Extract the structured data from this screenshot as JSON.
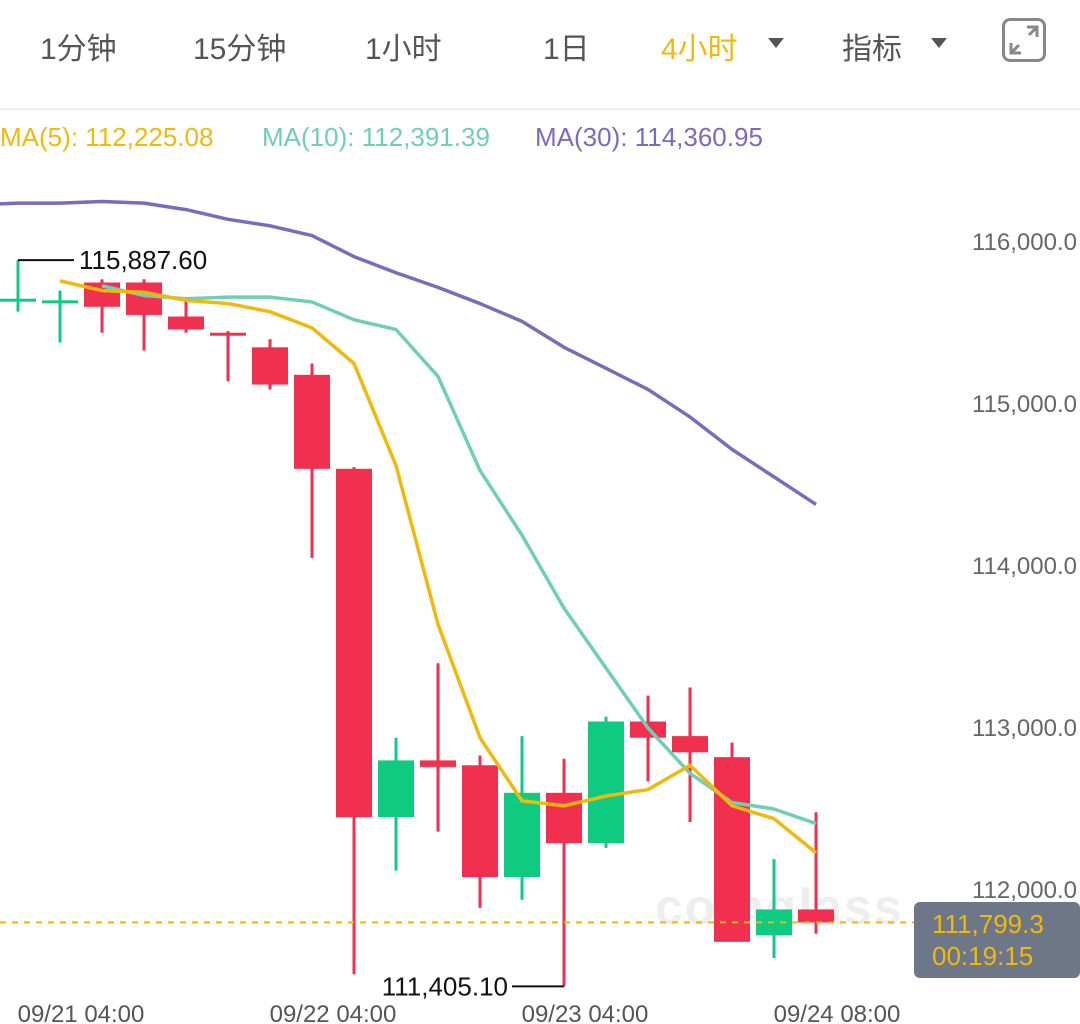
{
  "toolbar": {
    "tabs": [
      {
        "label": "1分钟",
        "active": false
      },
      {
        "label": "15分钟",
        "active": false
      },
      {
        "label": "1小时",
        "active": false
      },
      {
        "label": "1日",
        "active": false
      },
      {
        "label": "4小时",
        "active": true
      }
    ],
    "indicators_label": "指标",
    "expand_icon": "expand-icon"
  },
  "ma": {
    "ma5": {
      "label": "MA(5):",
      "value": "112,225.08",
      "color": "#f0b90b"
    },
    "ma10": {
      "label": "MA(10):",
      "value": "112,391.39",
      "color": "#6fcfb6"
    },
    "ma30": {
      "label": "MA(30):",
      "value": "114,360.95",
      "color": "#7b6bbf"
    }
  },
  "current_price": {
    "price": "111,799.3",
    "countdown": "00:19:15"
  },
  "watermark": "coinglass",
  "chart_data": {
    "type": "candlestick",
    "colors": {
      "up": "#0ecb81",
      "down": "#f0304e",
      "ma5": "#f0b90b",
      "ma10": "#6fcfb6",
      "ma30": "#7b6bbf"
    },
    "y_ticks": [
      "116,000.0",
      "115,000.0",
      "114,000.0",
      "113,000.0",
      "112,000.0"
    ],
    "y_tick_values": [
      116000,
      115000,
      114000,
      113000,
      112000
    ],
    "ylim": [
      111300,
      117100
    ],
    "x_labels": [
      {
        "label": "09/21 04:00",
        "index": 1.5
      },
      {
        "label": "09/22 04:00",
        "index": 7.5
      },
      {
        "label": "09/23 04:00",
        "index": 13.5
      },
      {
        "label": "09/24 08:00",
        "index": 19.5
      }
    ],
    "candles": [
      {
        "o": 115640,
        "h": 115888,
        "l": 115570,
        "c": 115650
      },
      {
        "o": 115640,
        "h": 115700,
        "l": 115380,
        "c": 115640
      },
      {
        "o": 115750,
        "h": 115770,
        "l": 115440,
        "c": 115600
      },
      {
        "o": 115750,
        "h": 115770,
        "l": 115330,
        "c": 115550
      },
      {
        "o": 115540,
        "h": 115650,
        "l": 115440,
        "c": 115460
      },
      {
        "o": 115440,
        "h": 115450,
        "l": 115140,
        "c": 115430
      },
      {
        "o": 115350,
        "h": 115400,
        "l": 115090,
        "c": 115120
      },
      {
        "o": 115180,
        "h": 115250,
        "l": 114050,
        "c": 114600
      },
      {
        "o": 114600,
        "h": 114610,
        "l": 111480,
        "c": 112450
      },
      {
        "o": 112450,
        "h": 112940,
        "l": 112120,
        "c": 112800
      },
      {
        "o": 112800,
        "h": 113400,
        "l": 112360,
        "c": 112760
      },
      {
        "o": 112770,
        "h": 112830,
        "l": 111890,
        "c": 112080
      },
      {
        "o": 112080,
        "h": 112950,
        "l": 111940,
        "c": 112600
      },
      {
        "o": 112600,
        "h": 112810,
        "l": 111405,
        "c": 112290
      },
      {
        "o": 112290,
        "h": 113070,
        "l": 112260,
        "c": 113040
      },
      {
        "o": 113040,
        "h": 113200,
        "l": 112670,
        "c": 112940
      },
      {
        "o": 112950,
        "h": 113250,
        "l": 112420,
        "c": 112850
      },
      {
        "o": 112820,
        "h": 112910,
        "l": 111720,
        "c": 111680
      },
      {
        "o": 111720,
        "h": 112190,
        "l": 111580,
        "c": 111880
      },
      {
        "o": 111880,
        "h": 112480,
        "l": 111730,
        "c": 111800
      }
    ],
    "ma5": [
      115760,
      115700,
      115690,
      115640,
      115620,
      115570,
      115470,
      115250,
      114620,
      113640,
      112940,
      112550,
      112520,
      112580,
      112620,
      112770,
      112520,
      112440,
      112230
    ],
    "ma10": [
      115730,
      115670,
      115650,
      115660,
      115660,
      115630,
      115520,
      115460,
      115170,
      114590,
      114190,
      113740,
      113370,
      113000,
      112720,
      112540,
      112500,
      112410
    ],
    "ma30": [
      116230,
      116240,
      116240,
      116250,
      116240,
      116200,
      116140,
      116100,
      116040,
      115910,
      115810,
      115720,
      115620,
      115510,
      115350,
      115220,
      115090,
      114920,
      114720,
      114550,
      114380
    ],
    "high_annotation": {
      "label": "115,887.60",
      "index": 0
    },
    "low_annotation": {
      "label": "111,405.10",
      "index": 13
    }
  }
}
